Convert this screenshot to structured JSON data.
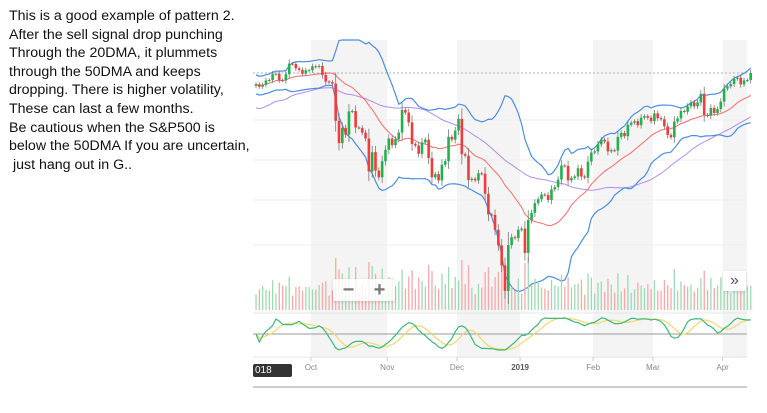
{
  "annotation": {
    "lines": [
      "This is a good example of pattern 2.",
      "After the sell signal drop punching",
      "Through the 20DMA, it plummets",
      "through the 50DMA and keeps",
      "dropping. There is higher volatility,",
      "These can last a few months.",
      "Be cautious when the S&P500 is",
      "below the 50DMA If you are uncertain,",
      " just hang out in G.."
    ]
  },
  "controls": {
    "zoom_out": "−",
    "zoom_in": "+",
    "scroll_right": "»",
    "year_badge": "018"
  },
  "colors": {
    "up": "#22b14c",
    "down": "#f03c3c",
    "ma20": "#f46b6b",
    "ma50": "#b48cf0",
    "bands": "#4a8ee0",
    "osc_k": "#3cb878",
    "osc_d": "#f5d76e"
  },
  "chart_data": {
    "type": "candlestick",
    "title": "",
    "indicators": [
      "20-day moving average",
      "50-day moving average",
      "Bollinger bands",
      "volume",
      "oscillator"
    ],
    "x_tick_labels": [
      "Oct",
      "Nov",
      "Dec",
      "2019",
      "Feb",
      "Mar",
      "Apr"
    ],
    "month_lengths": [
      17,
      23,
      21,
      19,
      22,
      18,
      21,
      9
    ],
    "closes": [
      2878,
      2872,
      2877,
      2888,
      2889,
      2904,
      2905,
      2889,
      2888,
      2904,
      2931,
      2930,
      2919,
      2915,
      2905,
      2914,
      2914,
      2924,
      2923,
      2925,
      2902,
      2885,
      2884,
      2880,
      2785,
      2728,
      2767,
      2750,
      2809,
      2810,
      2768,
      2767,
      2755,
      2740,
      2656,
      2705,
      2658,
      2641,
      2682,
      2711,
      2740,
      2723,
      2738,
      2755,
      2813,
      2806,
      2781,
      2726,
      2722,
      2701,
      2730,
      2737,
      2690,
      2641,
      2649,
      2633,
      2673,
      2682,
      2744,
      2737,
      2760,
      2790,
      2700,
      2696,
      2634,
      2637,
      2633,
      2651,
      2650,
      2599,
      2546,
      2545,
      2507,
      2467,
      2416,
      2351,
      2468,
      2488,
      2486,
      2507,
      2510,
      2448,
      2532,
      2550,
      2575,
      2585,
      2597,
      2596,
      2583,
      2610,
      2616,
      2635,
      2671,
      2670,
      2633,
      2639,
      2643,
      2664,
      2643,
      2640,
      2681,
      2704,
      2707,
      2725,
      2737,
      2732,
      2707,
      2710,
      2709,
      2744,
      2754,
      2746,
      2775,
      2780,
      2784,
      2774,
      2793,
      2797,
      2793,
      2784,
      2804,
      2792,
      2789,
      2771,
      2749,
      2743,
      2783,
      2791,
      2810,
      2808,
      2822,
      2832,
      2822,
      2832,
      2854,
      2800,
      2798,
      2818,
      2805,
      2815,
      2834,
      2867,
      2873,
      2879,
      2892,
      2895,
      2878,
      2888,
      2889,
      2907
    ],
    "last_price_line": 2907
  }
}
